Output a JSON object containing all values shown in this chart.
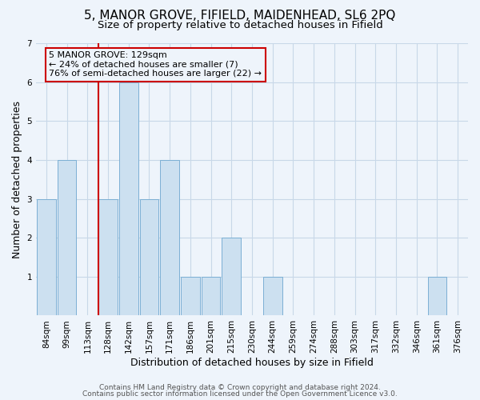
{
  "title_main": "5, MANOR GROVE, FIFIELD, MAIDENHEAD, SL6 2PQ",
  "title_sub": "Size of property relative to detached houses in Fifield",
  "xlabel": "Distribution of detached houses by size in Fifield",
  "ylabel": "Number of detached properties",
  "categories": [
    "84sqm",
    "99sqm",
    "113sqm",
    "128sqm",
    "142sqm",
    "157sqm",
    "171sqm",
    "186sqm",
    "201sqm",
    "215sqm",
    "230sqm",
    "244sqm",
    "259sqm",
    "274sqm",
    "288sqm",
    "303sqm",
    "317sqm",
    "332sqm",
    "346sqm",
    "361sqm",
    "376sqm"
  ],
  "values": [
    3,
    4,
    0,
    3,
    6,
    3,
    4,
    1,
    1,
    2,
    0,
    1,
    0,
    0,
    0,
    0,
    0,
    0,
    0,
    1,
    0
  ],
  "bar_color": "#cce0f0",
  "bar_edge_color": "#7bafd4",
  "highlight_index": 3,
  "highlight_line_color": "#cc0000",
  "annotation_text": "5 MANOR GROVE: 129sqm\n← 24% of detached houses are smaller (7)\n76% of semi-detached houses are larger (22) →",
  "annotation_box_edge": "#cc0000",
  "ylim": [
    0,
    7
  ],
  "yticks": [
    0,
    1,
    2,
    3,
    4,
    5,
    6,
    7
  ],
  "footer_line1": "Contains HM Land Registry data © Crown copyright and database right 2024.",
  "footer_line2": "Contains public sector information licensed under the Open Government Licence v3.0.",
  "background_color": "#eef4fb",
  "grid_color": "#c8d8e8",
  "title_fontsize": 11,
  "subtitle_fontsize": 9.5,
  "axis_label_fontsize": 9,
  "tick_fontsize": 7.5,
  "footer_fontsize": 6.5,
  "annotation_fontsize": 8
}
